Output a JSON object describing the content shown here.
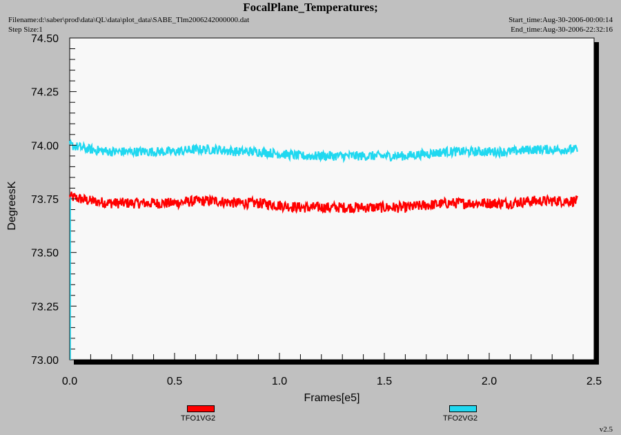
{
  "header": {
    "title": "FocalPlane_Temperatures;",
    "filename": "Filename:d:\\saber\\prod\\data\\QL\\data\\plot_data\\SABE_Tlm2006242000000.dat",
    "step_size": "Step Size:1",
    "start_time": "Start_time:Aug-30-2006-00:00:14",
    "end_time": "End_time:Aug-30-2006-22:32:16"
  },
  "footer": {
    "version": "v2.5"
  },
  "chart_data": {
    "type": "line",
    "xlabel": "Frames[e5]",
    "ylabel": "DegreesK",
    "xlim": [
      0.0,
      2.5
    ],
    "ylim": [
      73.0,
      74.5
    ],
    "xticks": [
      "0.0",
      "0.5",
      "1.0",
      "1.5",
      "2.0",
      "2.5"
    ],
    "yticks": [
      "73.00",
      "73.25",
      "73.50",
      "73.75",
      "74.00",
      "74.25",
      "74.50"
    ],
    "grid": false,
    "legend_position": "bottom",
    "series": [
      {
        "name": "TFO1VG2",
        "color": "#ff0000",
        "x": [
          0.0,
          0.1,
          0.2,
          0.3,
          0.4,
          0.5,
          0.6,
          0.7,
          0.8,
          0.9,
          1.0,
          1.1,
          1.2,
          1.3,
          1.4,
          1.5,
          1.6,
          1.7,
          1.8,
          1.9,
          2.0,
          2.1,
          2.2,
          2.3,
          2.42
        ],
        "y": [
          73.76,
          73.74,
          73.73,
          73.73,
          73.73,
          73.73,
          73.74,
          73.74,
          73.73,
          73.73,
          73.72,
          73.71,
          73.71,
          73.71,
          73.71,
          73.71,
          73.71,
          73.72,
          73.73,
          73.73,
          73.73,
          73.73,
          73.74,
          73.74,
          73.74
        ],
        "noise": 0.025
      },
      {
        "name": "TFO2VG2",
        "color": "#20d8f0",
        "x": [
          0.0,
          0.1,
          0.2,
          0.3,
          0.4,
          0.5,
          0.6,
          0.7,
          0.8,
          0.9,
          1.0,
          1.1,
          1.2,
          1.3,
          1.4,
          1.5,
          1.6,
          1.7,
          1.8,
          1.9,
          2.0,
          2.1,
          2.2,
          2.3,
          2.42
        ],
        "y": [
          74.0,
          73.98,
          73.97,
          73.97,
          73.97,
          73.97,
          73.98,
          73.98,
          73.97,
          73.97,
          73.96,
          73.95,
          73.95,
          73.95,
          73.95,
          73.95,
          73.95,
          73.96,
          73.97,
          73.97,
          73.97,
          73.97,
          73.98,
          73.98,
          73.98
        ],
        "noise": 0.022
      }
    ]
  }
}
